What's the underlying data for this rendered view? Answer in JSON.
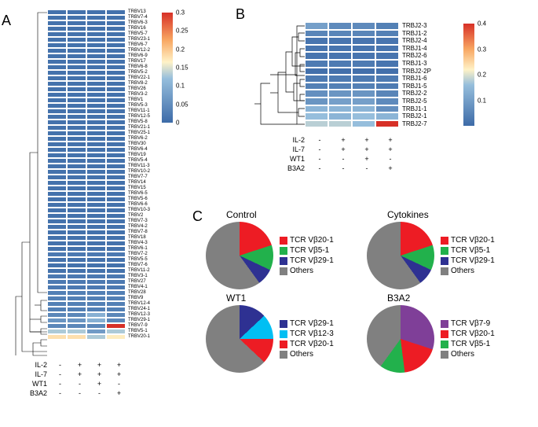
{
  "panels": {
    "A": "A",
    "B": "B",
    "C": "C"
  },
  "colors": {
    "heatmap_low": "#3d6ba8",
    "heatmap_mid": "#fff2c7",
    "heatmap_high": "#d73027",
    "grey": "#808080",
    "red": "#ed1c24",
    "green": "#22b14c",
    "blue": "#2e3192",
    "cyan": "#00bff3",
    "purple": "#7f3f98",
    "dendro": "#000000"
  },
  "heatmapA": {
    "rows": [
      {
        "label": "TRBV13",
        "v": [
          0.01,
          0.01,
          0.01,
          0.01
        ]
      },
      {
        "label": "TRBV7-4",
        "v": [
          0.01,
          0.01,
          0.01,
          0.01
        ]
      },
      {
        "label": "TRBV6-3",
        "v": [
          0.01,
          0.01,
          0.01,
          0.01
        ]
      },
      {
        "label": "TRBV16",
        "v": [
          0.01,
          0.01,
          0.01,
          0.01
        ]
      },
      {
        "label": "TRBV5-7",
        "v": [
          0.01,
          0.01,
          0.01,
          0.01
        ]
      },
      {
        "label": "TRBV23-1",
        "v": [
          0.01,
          0.01,
          0.01,
          0.01
        ]
      },
      {
        "label": "TRBV6-7",
        "v": [
          0.01,
          0.01,
          0.01,
          0.01
        ]
      },
      {
        "label": "TRBV12-2",
        "v": [
          0.01,
          0.01,
          0.01,
          0.01
        ]
      },
      {
        "label": "TRBV6-9",
        "v": [
          0.01,
          0.01,
          0.01,
          0.01
        ]
      },
      {
        "label": "TRBV17",
        "v": [
          0.01,
          0.01,
          0.01,
          0.01
        ]
      },
      {
        "label": "TRBV6-8",
        "v": [
          0.01,
          0.01,
          0.01,
          0.01
        ]
      },
      {
        "label": "TRBV5-2",
        "v": [
          0.01,
          0.01,
          0.01,
          0.01
        ]
      },
      {
        "label": "TRBV22-1",
        "v": [
          0.01,
          0.01,
          0.01,
          0.01
        ]
      },
      {
        "label": "TRBV8-2",
        "v": [
          0.01,
          0.01,
          0.01,
          0.01
        ]
      },
      {
        "label": "TRBV26",
        "v": [
          0.01,
          0.01,
          0.01,
          0.01
        ]
      },
      {
        "label": "TRBV3-2",
        "v": [
          0.01,
          0.01,
          0.01,
          0.01
        ]
      },
      {
        "label": "TRBV1",
        "v": [
          0.01,
          0.01,
          0.01,
          0.01
        ]
      },
      {
        "label": "TRBV5-3",
        "v": [
          0.01,
          0.01,
          0.01,
          0.01
        ]
      },
      {
        "label": "TRBV11-1",
        "v": [
          0.01,
          0.01,
          0.01,
          0.01
        ]
      },
      {
        "label": "TRBV12-5",
        "v": [
          0.01,
          0.01,
          0.01,
          0.01
        ]
      },
      {
        "label": "TRBV5-8",
        "v": [
          0.01,
          0.01,
          0.01,
          0.01
        ]
      },
      {
        "label": "TRBV21-1",
        "v": [
          0.01,
          0.01,
          0.01,
          0.01
        ]
      },
      {
        "label": "TRBV25-1",
        "v": [
          0.01,
          0.01,
          0.01,
          0.01
        ]
      },
      {
        "label": "TRBV6-2",
        "v": [
          0.01,
          0.01,
          0.01,
          0.01
        ]
      },
      {
        "label": "TRBV30",
        "v": [
          0.01,
          0.01,
          0.01,
          0.01
        ]
      },
      {
        "label": "TRBV6-4",
        "v": [
          0.01,
          0.01,
          0.01,
          0.01
        ]
      },
      {
        "label": "TRBV19",
        "v": [
          0.01,
          0.01,
          0.01,
          0.01
        ]
      },
      {
        "label": "TRBV5-4",
        "v": [
          0.01,
          0.01,
          0.01,
          0.01
        ]
      },
      {
        "label": "TRBV11-3",
        "v": [
          0.01,
          0.01,
          0.01,
          0.01
        ]
      },
      {
        "label": "TRBV10-2",
        "v": [
          0.01,
          0.01,
          0.01,
          0.01
        ]
      },
      {
        "label": "TRBV7-7",
        "v": [
          0.01,
          0.01,
          0.01,
          0.01
        ]
      },
      {
        "label": "TRBV14",
        "v": [
          0.01,
          0.01,
          0.01,
          0.01
        ]
      },
      {
        "label": "TRBV15",
        "v": [
          0.01,
          0.01,
          0.01,
          0.01
        ]
      },
      {
        "label": "TRBV6-5",
        "v": [
          0.01,
          0.01,
          0.01,
          0.01
        ]
      },
      {
        "label": "TRBV5-6",
        "v": [
          0.01,
          0.01,
          0.01,
          0.01
        ]
      },
      {
        "label": "TRBV6-6",
        "v": [
          0.01,
          0.01,
          0.01,
          0.01
        ]
      },
      {
        "label": "TRBV10-3",
        "v": [
          0.01,
          0.01,
          0.01,
          0.01
        ]
      },
      {
        "label": "TRBV2",
        "v": [
          0.01,
          0.01,
          0.01,
          0.01
        ]
      },
      {
        "label": "TRBV7-3",
        "v": [
          0.01,
          0.01,
          0.01,
          0.01
        ]
      },
      {
        "label": "TRBV4-2",
        "v": [
          0.01,
          0.01,
          0.01,
          0.01
        ]
      },
      {
        "label": "TRBV7-8",
        "v": [
          0.01,
          0.01,
          0.01,
          0.01
        ]
      },
      {
        "label": "TRBV18",
        "v": [
          0.01,
          0.01,
          0.01,
          0.01
        ]
      },
      {
        "label": "TRBV4-3",
        "v": [
          0.01,
          0.01,
          0.01,
          0.01
        ]
      },
      {
        "label": "TRBV6-1",
        "v": [
          0.01,
          0.01,
          0.01,
          0.01
        ]
      },
      {
        "label": "TRBV7-2",
        "v": [
          0.02,
          0.02,
          0.02,
          0.02
        ]
      },
      {
        "label": "TRBV5-5",
        "v": [
          0.01,
          0.01,
          0.01,
          0.01
        ]
      },
      {
        "label": "TRBV7-6",
        "v": [
          0.01,
          0.01,
          0.01,
          0.01
        ]
      },
      {
        "label": "TRBV11-2",
        "v": [
          0.01,
          0.01,
          0.01,
          0.01
        ]
      },
      {
        "label": "TRBV3-1",
        "v": [
          0.02,
          0.02,
          0.02,
          0.02
        ]
      },
      {
        "label": "TRBV27",
        "v": [
          0.02,
          0.02,
          0.02,
          0.02
        ]
      },
      {
        "label": "TRBV4-1",
        "v": [
          0.02,
          0.02,
          0.02,
          0.02
        ]
      },
      {
        "label": "TRBV28",
        "v": [
          0.03,
          0.03,
          0.03,
          0.03
        ]
      },
      {
        "label": "TRBV9",
        "v": [
          0.03,
          0.03,
          0.03,
          0.03
        ]
      },
      {
        "label": "TRBV12-4",
        "v": [
          0.03,
          0.03,
          0.03,
          0.03
        ]
      },
      {
        "label": "TRBV24-1",
        "v": [
          0.03,
          0.03,
          0.03,
          0.03
        ]
      },
      {
        "label": "TRBV12-3",
        "v": [
          0.04,
          0.04,
          0.1,
          0.04
        ]
      },
      {
        "label": "TRBV29-1",
        "v": [
          0.06,
          0.06,
          0.1,
          0.04
        ]
      },
      {
        "label": "TRBV7-9",
        "v": [
          0.04,
          0.04,
          0.04,
          0.3
        ]
      },
      {
        "label": "TRBV5-1",
        "v": [
          0.13,
          0.13,
          0.07,
          0.13
        ]
      },
      {
        "label": "TRBV20-1",
        "v": [
          0.18,
          0.18,
          0.13,
          0.17
        ]
      }
    ],
    "colorbar": {
      "min": 0,
      "max": 0.3,
      "ticks": [
        0,
        0.05,
        0.1,
        0.15,
        0.2,
        0.25,
        0.3
      ],
      "height": 140
    },
    "conditions": [
      {
        "label": "IL-2",
        "vals": [
          "-",
          "+",
          "+",
          "+"
        ]
      },
      {
        "label": "IL-7",
        "vals": [
          "-",
          "+",
          "+",
          "+"
        ]
      },
      {
        "label": "WT1",
        "vals": [
          "-",
          "-",
          "+",
          "-"
        ]
      },
      {
        "label": "B3A2",
        "vals": [
          "-",
          "-",
          "-",
          "+"
        ]
      }
    ]
  },
  "heatmapB": {
    "rows": [
      {
        "label": "TRBJ2-3",
        "v": [
          0.1,
          0.06,
          0.06,
          0.04
        ]
      },
      {
        "label": "TRBJ1-2",
        "v": [
          0.05,
          0.05,
          0.05,
          0.04
        ]
      },
      {
        "label": "TRBJ2-4",
        "v": [
          0.02,
          0.02,
          0.02,
          0.02
        ]
      },
      {
        "label": "TRBJ1-4",
        "v": [
          0.02,
          0.02,
          0.02,
          0.02
        ]
      },
      {
        "label": "TRBJ2-6",
        "v": [
          0.02,
          0.02,
          0.02,
          0.02
        ]
      },
      {
        "label": "TRBJ1-3",
        "v": [
          0.03,
          0.03,
          0.03,
          0.02
        ]
      },
      {
        "label": "TRBJ2-2P",
        "v": [
          0.01,
          0.01,
          0.01,
          0.01
        ]
      },
      {
        "label": "TRBJ1-6",
        "v": [
          0.03,
          0.03,
          0.03,
          0.03
        ]
      },
      {
        "label": "TRBJ1-5",
        "v": [
          0.04,
          0.04,
          0.04,
          0.03
        ]
      },
      {
        "label": "TRBJ2-2",
        "v": [
          0.07,
          0.08,
          0.08,
          0.05
        ]
      },
      {
        "label": "TRBJ2-5",
        "v": [
          0.08,
          0.1,
          0.1,
          0.06
        ]
      },
      {
        "label": "TRBJ1-1",
        "v": [
          0.14,
          0.14,
          0.14,
          0.07
        ]
      },
      {
        "label": "TRBJ2-1",
        "v": [
          0.16,
          0.14,
          0.16,
          0.14
        ]
      },
      {
        "label": "TRBJ2-7",
        "v": [
          0.18,
          0.18,
          0.16,
          0.4
        ]
      }
    ],
    "colorbar": {
      "min": 0,
      "max": 0.4,
      "ticks": [
        0.1,
        0.2,
        0.3,
        0.4
      ],
      "height": 130
    },
    "conditions": [
      {
        "label": "IL-2",
        "vals": [
          "-",
          "+",
          "+",
          "+"
        ]
      },
      {
        "label": "IL-7",
        "vals": [
          "-",
          "+",
          "+",
          "+"
        ]
      },
      {
        "label": "WT1",
        "vals": [
          "-",
          "-",
          "+",
          "-"
        ]
      },
      {
        "label": "B3A2",
        "vals": [
          "-",
          "-",
          "-",
          "+"
        ]
      }
    ]
  },
  "pies": [
    {
      "title": "Control",
      "slices": [
        {
          "label": "TCR Vβ20-1",
          "frac": 0.2,
          "color": "#ed1c24"
        },
        {
          "label": "TCR Vβ5-1",
          "frac": 0.12,
          "color": "#22b14c"
        },
        {
          "label": "TCR Vβ29-1",
          "frac": 0.08,
          "color": "#2e3192"
        },
        {
          "label": "Others",
          "frac": 0.6,
          "color": "#808080"
        }
      ]
    },
    {
      "title": "Cytokines",
      "slices": [
        {
          "label": "TCR Vβ20-1",
          "frac": 0.2,
          "color": "#ed1c24"
        },
        {
          "label": "TCR Vβ5-1",
          "frac": 0.12,
          "color": "#22b14c"
        },
        {
          "label": "TCR Vβ29-1",
          "frac": 0.08,
          "color": "#2e3192"
        },
        {
          "label": "Others",
          "frac": 0.6,
          "color": "#808080"
        }
      ]
    },
    {
      "title": "WT1",
      "slices": [
        {
          "label": "TCR Vβ29-1",
          "frac": 0.13,
          "color": "#2e3192"
        },
        {
          "label": "TCR Vβ12-3",
          "frac": 0.12,
          "color": "#00bff3"
        },
        {
          "label": "TCR Vβ20-1",
          "frac": 0.12,
          "color": "#ed1c24"
        },
        {
          "label": "Others",
          "frac": 0.63,
          "color": "#808080"
        }
      ]
    },
    {
      "title": "B3A2",
      "slices": [
        {
          "label": "TCR Vβ7-9",
          "frac": 0.3,
          "color": "#7f3f98"
        },
        {
          "label": "TCR Vβ20-1",
          "frac": 0.18,
          "color": "#ed1c24"
        },
        {
          "label": "TCR Vβ5-1",
          "frac": 0.12,
          "color": "#22b14c"
        },
        {
          "label": "Others",
          "frac": 0.4,
          "color": "#808080"
        }
      ]
    }
  ]
}
